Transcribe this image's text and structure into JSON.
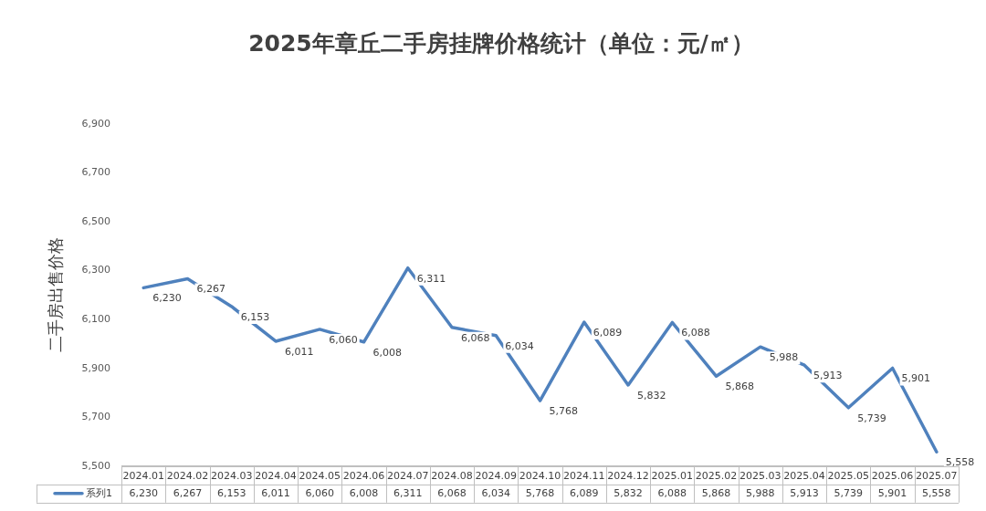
{
  "chart_data": {
    "type": "line",
    "title": "2025年章丘二手房挂牌价格统计（单位：元/㎡）",
    "ylabel": "二手房出售价格",
    "categories": [
      "2024.01",
      "2024.02",
      "2024.03",
      "2024.04",
      "2024.05",
      "2024.06",
      "2024.07",
      "2024.08",
      "2024.09",
      "2024.10",
      "2024.11",
      "2024.12",
      "2025.01",
      "2025.02",
      "2025.03",
      "2025.04",
      "2025.05",
      "2025.06",
      "2025.07"
    ],
    "series": [
      {
        "name": "系列1",
        "color": "#4f81bd",
        "values": [
          6230,
          6267,
          6153,
          6011,
          6060,
          6008,
          6311,
          6068,
          6034,
          5768,
          6089,
          5832,
          6088,
          5868,
          5988,
          5913,
          5739,
          5901,
          5558
        ],
        "value_labels": [
          "6,230",
          "6,267",
          "6,153",
          "6,011",
          "6,060",
          "6,008",
          "6,311",
          "6,068",
          "6,034",
          "5,768",
          "6,089",
          "5,832",
          "6,088",
          "5,868",
          "5,988",
          "5,913",
          "5,739",
          "5,901",
          "5,558"
        ]
      }
    ],
    "ylim": [
      5500,
      6900
    ],
    "yticks": [
      {
        "value": 5500,
        "label": "5,500"
      },
      {
        "value": 5700,
        "label": "5,700"
      },
      {
        "value": 5900,
        "label": "5,900"
      },
      {
        "value": 6100,
        "label": "6,100"
      },
      {
        "value": 6300,
        "label": "6,300"
      },
      {
        "value": 6500,
        "label": "6,500"
      },
      {
        "value": 6700,
        "label": "6,700"
      },
      {
        "value": 6900,
        "label": "6,900"
      }
    ],
    "grid": false,
    "legend": "bottom",
    "marker": "none",
    "line_style": "solid"
  }
}
